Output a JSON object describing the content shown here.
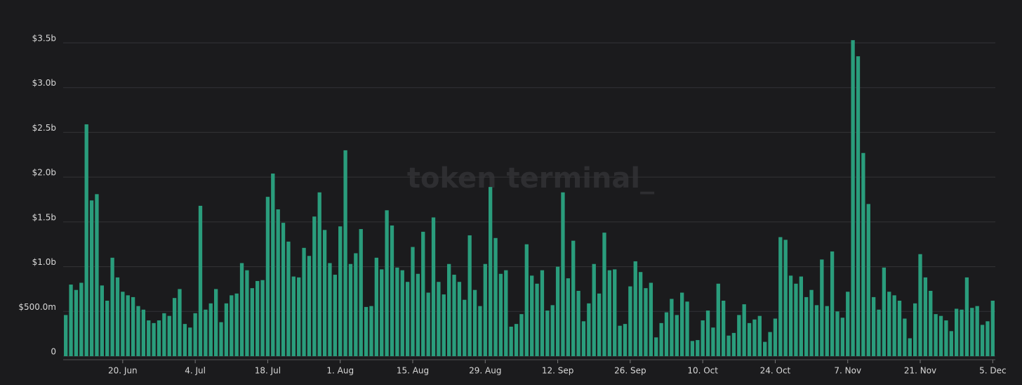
{
  "chart_data": {
    "type": "bar",
    "watermark": "token terminal_",
    "color": "#2a9d7c",
    "grid": true,
    "ylim": [
      0,
      3500000000
    ],
    "yticks": [
      0,
      {
        "value": 500000000,
        "label": "$500.0m"
      },
      {
        "value": 1000000000,
        "label": "$1.0b"
      },
      {
        "value": 1500000000,
        "label": "$1.5b"
      },
      {
        "value": 2000000000,
        "label": "$2.0b"
      },
      {
        "value": 2500000000,
        "label": "$2.5b"
      },
      {
        "value": 3000000000,
        "label": "$3.0b"
      },
      {
        "value": 3500000000,
        "label": "$3.5b"
      }
    ],
    "categories": [
      null,
      null,
      null,
      null,
      null,
      null,
      null,
      null,
      null,
      null,
      null,
      "20. Jun",
      null,
      null,
      null,
      null,
      null,
      null,
      null,
      null,
      null,
      null,
      null,
      null,
      null,
      "4. Jul",
      null,
      null,
      null,
      null,
      null,
      null,
      null,
      null,
      null,
      null,
      null,
      null,
      null,
      "18. Jul",
      null,
      null,
      null,
      null,
      null,
      null,
      null,
      null,
      null,
      null,
      null,
      null,
      null,
      "1. Aug",
      null,
      null,
      null,
      null,
      null,
      null,
      null,
      null,
      null,
      null,
      null,
      null,
      null,
      "15. Aug",
      null,
      null,
      null,
      null,
      null,
      null,
      null,
      null,
      null,
      null,
      null,
      null,
      null,
      "29. Aug",
      null,
      null,
      null,
      null,
      null,
      null,
      null,
      null,
      null,
      null,
      null,
      null,
      null,
      "12. Sep",
      null,
      null,
      null,
      null,
      null,
      null,
      null,
      null,
      null,
      null,
      null,
      null,
      null,
      "26. Sep",
      null,
      null,
      null,
      null,
      null,
      null,
      null,
      null,
      null,
      null,
      null,
      null,
      null,
      "10. Oct",
      null,
      null,
      null,
      null,
      null,
      null,
      null,
      null,
      null,
      null,
      null,
      null,
      null,
      "24. Oct",
      null,
      null,
      null,
      null,
      null,
      null,
      null,
      null,
      null,
      null,
      null,
      null,
      null,
      "7. Nov",
      null,
      null,
      null,
      null,
      null,
      null,
      null,
      null,
      null,
      null,
      null,
      null,
      null,
      "21. Nov",
      null,
      null,
      null,
      null,
      null,
      null,
      null,
      null,
      null,
      null,
      null,
      null,
      null,
      "5. Dec"
    ],
    "values": [
      460000000,
      800000000,
      740000000,
      820000000,
      2590000000,
      1740000000,
      1810000000,
      790000000,
      620000000,
      1100000000,
      880000000,
      720000000,
      680000000,
      660000000,
      560000000,
      520000000,
      400000000,
      370000000,
      400000000,
      480000000,
      450000000,
      650000000,
      750000000,
      360000000,
      320000000,
      480000000,
      1680000000,
      520000000,
      590000000,
      750000000,
      380000000,
      590000000,
      680000000,
      700000000,
      1040000000,
      960000000,
      760000000,
      840000000,
      850000000,
      1780000000,
      2040000000,
      1640000000,
      1490000000,
      1280000000,
      890000000,
      880000000,
      1210000000,
      1120000000,
      1560000000,
      1830000000,
      1410000000,
      1040000000,
      910000000,
      1450000000,
      2300000000,
      1030000000,
      1150000000,
      1420000000,
      550000000,
      560000000,
      1100000000,
      970000000,
      1630000000,
      1460000000,
      990000000,
      960000000,
      830000000,
      1220000000,
      920000000,
      1390000000,
      710000000,
      1550000000,
      830000000,
      690000000,
      1030000000,
      910000000,
      830000000,
      630000000,
      1350000000,
      740000000,
      560000000,
      1030000000,
      1890000000,
      1320000000,
      920000000,
      960000000,
      330000000,
      360000000,
      470000000,
      1250000000,
      900000000,
      810000000,
      960000000,
      510000000,
      570000000,
      1000000000,
      1830000000,
      870000000,
      1290000000,
      730000000,
      390000000,
      590000000,
      1030000000,
      700000000,
      1380000000,
      960000000,
      970000000,
      340000000,
      360000000,
      780000000,
      1060000000,
      940000000,
      760000000,
      820000000,
      210000000,
      370000000,
      490000000,
      640000000,
      460000000,
      710000000,
      610000000,
      170000000,
      180000000,
      400000000,
      510000000,
      320000000,
      810000000,
      620000000,
      230000000,
      260000000,
      460000000,
      580000000,
      370000000,
      410000000,
      450000000,
      160000000,
      270000000,
      420000000,
      1330000000,
      1300000000,
      900000000,
      810000000,
      890000000,
      660000000,
      740000000,
      570000000,
      1080000000,
      560000000,
      1170000000,
      500000000,
      430000000,
      720000000,
      3530000000,
      3350000000,
      2270000000,
      1700000000,
      660000000,
      520000000,
      990000000,
      720000000,
      680000000,
      620000000,
      420000000,
      200000000,
      590000000,
      1140000000,
      880000000,
      730000000,
      470000000,
      450000000,
      400000000,
      280000000,
      530000000,
      520000000,
      880000000,
      540000000,
      560000000,
      350000000,
      390000000,
      620000000
    ]
  }
}
